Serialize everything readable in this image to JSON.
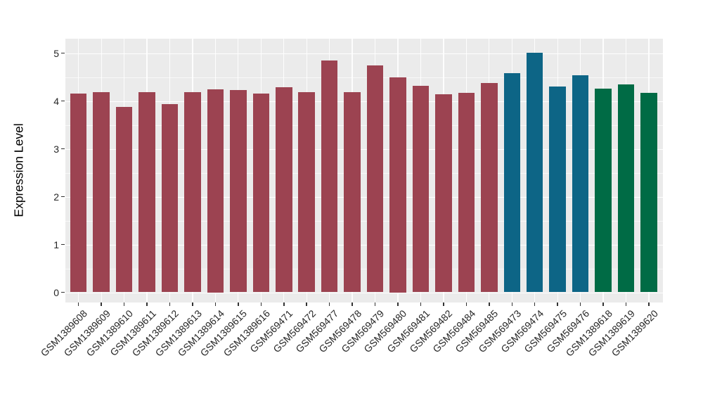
{
  "figure": {
    "background": "#FFFFFF",
    "panel_background": "#EBEBEB",
    "gridline_color": "#FFFFFF",
    "tick_mark_color": "#333333",
    "axis_text_color": "#262626",
    "axis_title_color": "#000000"
  },
  "chart_data": {
    "type": "bar",
    "title": "",
    "xlabel": "",
    "ylabel": "Expression Level",
    "ylim": [
      0,
      5
    ],
    "yticks": [
      0,
      1,
      2,
      3,
      4,
      5
    ],
    "grid": "major and minor horizontal white gridlines, vertical white gridlines at category centers, on gray panel",
    "legend_position": "none",
    "x_tick_label_rotation_deg": 45,
    "categories": [
      "GSM1389608",
      "GSM1389609",
      "GSM1389610",
      "GSM1389611",
      "GSM1389612",
      "GSM1389613",
      "GSM1389614",
      "GSM1389615",
      "GSM1389616",
      "GSM569471",
      "GSM569472",
      "GSM569477",
      "GSM569478",
      "GSM569479",
      "GSM569480",
      "GSM569481",
      "GSM569482",
      "GSM569484",
      "GSM569485",
      "GSM569473",
      "GSM569474",
      "GSM569475",
      "GSM569476",
      "GSM1389618",
      "GSM1389619",
      "GSM1389620"
    ],
    "values": [
      4.15,
      4.18,
      3.88,
      4.19,
      3.94,
      4.18,
      4.25,
      4.23,
      4.16,
      4.28,
      4.18,
      4.85,
      4.18,
      4.74,
      4.5,
      4.31,
      4.14,
      4.17,
      4.38,
      4.58,
      5.01,
      4.3,
      4.54,
      4.26,
      4.35,
      4.17
    ],
    "bar_color_groups": [
      "maroon",
      "maroon",
      "maroon",
      "maroon",
      "maroon",
      "maroon",
      "maroon",
      "maroon",
      "maroon",
      "maroon",
      "maroon",
      "maroon",
      "maroon",
      "maroon",
      "maroon",
      "maroon",
      "maroon",
      "maroon",
      "maroon",
      "teal",
      "teal",
      "teal",
      "teal",
      "green",
      "green",
      "green"
    ],
    "palette": {
      "maroon": "#9C4351",
      "teal": "#0D6586",
      "green": "#006B45"
    }
  }
}
